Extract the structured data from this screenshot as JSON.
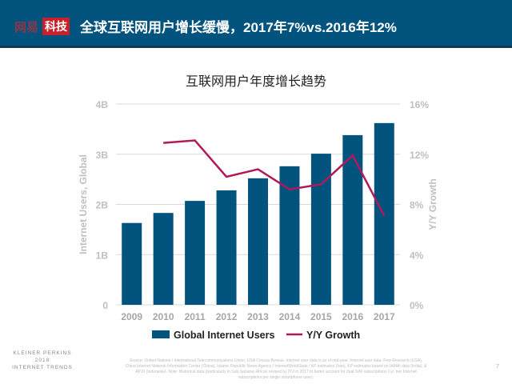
{
  "header": {
    "logo_part1": "网易",
    "logo_part2": "科技",
    "title": "全球互联网用户增长缓慢，2017年7%vs.2016年12%",
    "bg_color": "#02537e"
  },
  "chart_data": {
    "type": "bar+line",
    "title": "互联网用户年度增长趋势",
    "categories": [
      "2009",
      "2010",
      "2011",
      "2012",
      "2013",
      "2014",
      "2015",
      "2016",
      "2017"
    ],
    "series": [
      {
        "name": "Global Internet Users",
        "type": "bar",
        "axis": "left",
        "unit": "B",
        "color": "#02537e",
        "values": [
          1.63,
          1.83,
          2.07,
          2.28,
          2.52,
          2.76,
          3.01,
          3.38,
          3.62
        ]
      },
      {
        "name": "Y/Y Growth",
        "type": "line",
        "axis": "right",
        "unit": "%",
        "color": "#b0195a",
        "values": [
          null,
          12.9,
          13.1,
          10.2,
          10.8,
          9.2,
          9.6,
          11.9,
          7.1
        ]
      }
    ],
    "ylabel": "Internet Users, Global",
    "y2label": "Y/Y Growth",
    "ylim": [
      0,
      4
    ],
    "yticks": [
      "0",
      "1B",
      "2B",
      "3B",
      "4B"
    ],
    "y2lim": [
      0,
      16
    ],
    "y2ticks": [
      "0%",
      "4%",
      "8%",
      "12%",
      "16%"
    ],
    "grid": true,
    "legend": "bottom"
  },
  "footer": {
    "brand_line1": "KLEINER PERKINS",
    "brand_line2": "2018",
    "brand_line3": "INTERNET TRENDS",
    "source": "Source: United Nations / International Telecommunications Union, USA Census Bureau. Internet user data is as of mid-year. Internet user data: Pew Research (USA), China Internet Network Information Center (China), Islamic Republic News Agency / InternetWorldStats / KP estimates (Iran), KP estimates based on IAMAI data (India), & APJII (Indonesia). Note: Historical data (particularly in Sub-Saharan Africa) revised by ITU in 2017 to better account for dual-SIM subscriptions (i.e. two Internet subscriptions per single smartphone user).",
    "page": "7"
  }
}
